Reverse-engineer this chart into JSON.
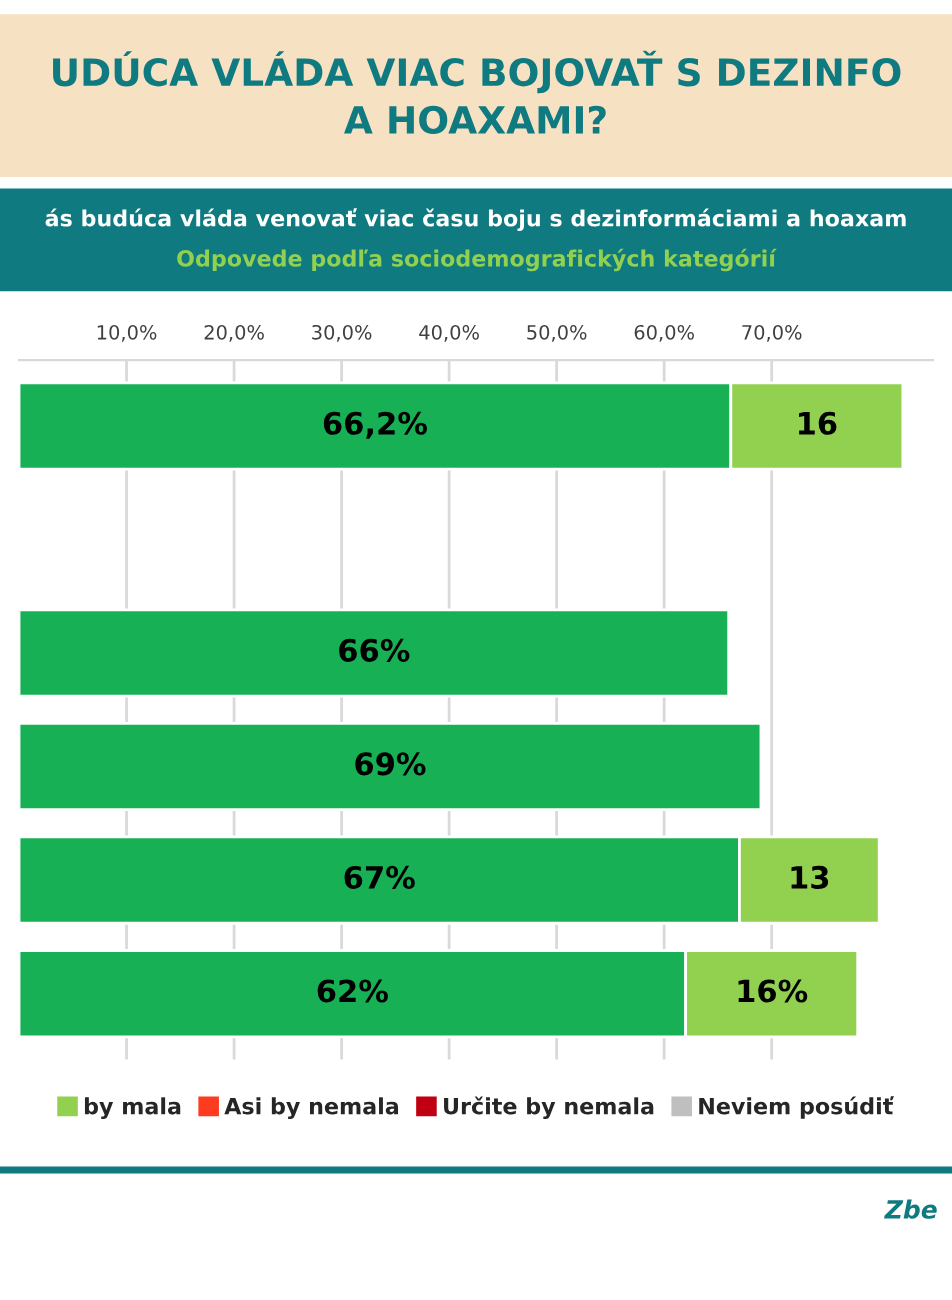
{
  "chart_data": {
    "type": "bar",
    "orientation": "horizontal",
    "stacked": true,
    "title": "UDÚCA VLÁDA VIAC BOJOVAŤ S DEZINFO\nA HOAXAMI?",
    "subtitle": "ás budúca vláda venovať viac času boju s dezinformáciami a hoaxam",
    "annotations": [
      "Odpovede podľa sociodemografických kategórií",
      "Zbe"
    ],
    "categories": [
      null,
      null,
      null,
      null,
      null,
      null
    ],
    "series": [
      {
        "color": "#17b055",
        "values": [
          66.2,
          null,
          66,
          69,
          67,
          62
        ],
        "value_labels": [
          "66,2%",
          null,
          "66%",
          "69%",
          "67%",
          "62%"
        ]
      },
      {
        "name": "by mala",
        "color": "#92d050",
        "values": [
          16,
          null,
          null,
          null,
          13,
          16
        ],
        "value_labels": [
          "16",
          null,
          null,
          null,
          "13",
          "16%"
        ]
      },
      {
        "name": "Asi by nemala",
        "color": "#ff3b1f",
        "values": [
          null,
          null,
          null,
          null,
          null,
          null
        ]
      },
      {
        "name": "Určite by nemala",
        "color": "#c00010",
        "values": [
          null,
          null,
          null,
          null,
          null,
          null
        ]
      },
      {
        "name": "Neviem posúdiť",
        "color": "#bfbfbf",
        "values": [
          null,
          null,
          null,
          null,
          null,
          null
        ]
      }
    ],
    "xlim": [
      0,
      85
    ],
    "xticks": [
      {
        "value": 10,
        "label": "10,0%"
      },
      {
        "value": 20,
        "label": "20,0%"
      },
      {
        "value": 30,
        "label": "30,0%"
      },
      {
        "value": 40,
        "label": "40,0%"
      },
      {
        "value": 50,
        "label": "50,0%"
      },
      {
        "value": 60,
        "label": "60,0%"
      },
      {
        "value": 70,
        "label": "70,0%"
      }
    ],
    "grid": "x",
    "legend": "bottom"
  }
}
